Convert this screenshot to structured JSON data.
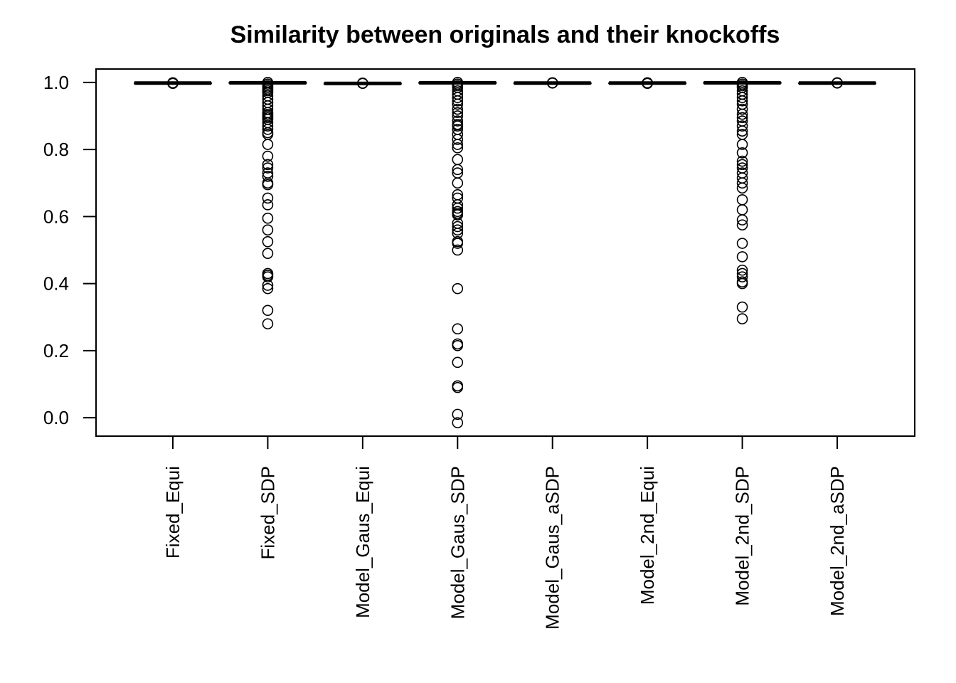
{
  "chart_data": {
    "type": "boxplot",
    "title": "Similarity between originals and their knockoffs",
    "xlabel": "",
    "ylabel": "",
    "ylim": [
      -0.055,
      1.04
    ],
    "y_ticks": [
      0.0,
      0.2,
      0.4,
      0.6,
      0.8,
      1.0
    ],
    "y_tick_labels": [
      "0.0",
      "0.2",
      "0.4",
      "0.6",
      "0.8",
      "1.0"
    ],
    "grid": false,
    "legend": "none",
    "categories": [
      "Fixed_Equi",
      "Fixed_SDP",
      "Model_Gaus_Equi",
      "Model_Gaus_SDP",
      "Model_Gaus_aSDP",
      "Model_2nd_Equi",
      "Model_2nd_SDP",
      "Model_2nd_aSDP"
    ],
    "series": [
      {
        "category": "Fixed_Equi",
        "median": 0.998,
        "q1": 0.998,
        "q3": 0.998,
        "whisker_low": 0.998,
        "whisker_high": 0.998,
        "outliers": [
          0.999,
          0.998,
          0.997
        ]
      },
      {
        "category": "Fixed_SDP",
        "median": 0.999,
        "q1": 0.998,
        "q3": 1.0,
        "whisker_low": 0.998,
        "whisker_high": 1.0,
        "outliers": [
          1.0,
          0.995,
          0.99,
          0.985,
          0.98,
          0.975,
          0.97,
          0.96,
          0.95,
          0.94,
          0.93,
          0.92,
          0.91,
          0.905,
          0.9,
          0.895,
          0.89,
          0.88,
          0.87,
          0.86,
          0.85,
          0.845,
          0.815,
          0.78,
          0.755,
          0.745,
          0.73,
          0.72,
          0.7,
          0.695,
          0.655,
          0.635,
          0.595,
          0.56,
          0.525,
          0.49,
          0.43,
          0.425,
          0.42,
          0.395,
          0.385,
          0.32,
          0.28
        ]
      },
      {
        "category": "Model_Gaus_Equi",
        "median": 0.997,
        "q1": 0.997,
        "q3": 0.997,
        "whisker_low": 0.997,
        "whisker_high": 0.997,
        "outliers": [
          0.998,
          0.997
        ]
      },
      {
        "category": "Model_Gaus_SDP",
        "median": 0.999,
        "q1": 0.998,
        "q3": 1.0,
        "whisker_low": 0.998,
        "whisker_high": 1.0,
        "outliers": [
          1.0,
          0.995,
          0.99,
          0.985,
          0.975,
          0.965,
          0.955,
          0.945,
          0.935,
          0.92,
          0.91,
          0.9,
          0.885,
          0.875,
          0.87,
          0.86,
          0.845,
          0.83,
          0.815,
          0.805,
          0.77,
          0.74,
          0.73,
          0.7,
          0.665,
          0.655,
          0.635,
          0.625,
          0.615,
          0.61,
          0.605,
          0.58,
          0.57,
          0.56,
          0.55,
          0.525,
          0.52,
          0.5,
          0.385,
          0.265,
          0.22,
          0.215,
          0.165,
          0.095,
          0.09,
          0.01,
          -0.015
        ]
      },
      {
        "category": "Model_Gaus_aSDP",
        "median": 0.998,
        "q1": 0.998,
        "q3": 0.998,
        "whisker_low": 0.998,
        "whisker_high": 0.998,
        "outliers": [
          0.999,
          0.998
        ]
      },
      {
        "category": "Model_2nd_Equi",
        "median": 0.998,
        "q1": 0.998,
        "q3": 0.998,
        "whisker_low": 0.998,
        "whisker_high": 0.998,
        "outliers": [
          0.999,
          0.998,
          0.997
        ]
      },
      {
        "category": "Model_2nd_SDP",
        "median": 0.999,
        "q1": 0.998,
        "q3": 1.0,
        "whisker_low": 0.998,
        "whisker_high": 1.0,
        "outliers": [
          1.0,
          0.995,
          0.99,
          0.985,
          0.975,
          0.965,
          0.955,
          0.945,
          0.935,
          0.92,
          0.905,
          0.895,
          0.885,
          0.87,
          0.855,
          0.845,
          0.815,
          0.79,
          0.765,
          0.755,
          0.745,
          0.73,
          0.715,
          0.7,
          0.685,
          0.65,
          0.62,
          0.59,
          0.575,
          0.52,
          0.48,
          0.44,
          0.43,
          0.42,
          0.405,
          0.4,
          0.33,
          0.295
        ]
      },
      {
        "category": "Model_2nd_aSDP",
        "median": 0.998,
        "q1": 0.998,
        "q3": 0.998,
        "whisker_low": 0.998,
        "whisker_high": 0.998,
        "outliers": [
          0.999,
          0.998
        ]
      }
    ],
    "colors": {
      "line": "#000000",
      "background": "#ffffff"
    }
  }
}
